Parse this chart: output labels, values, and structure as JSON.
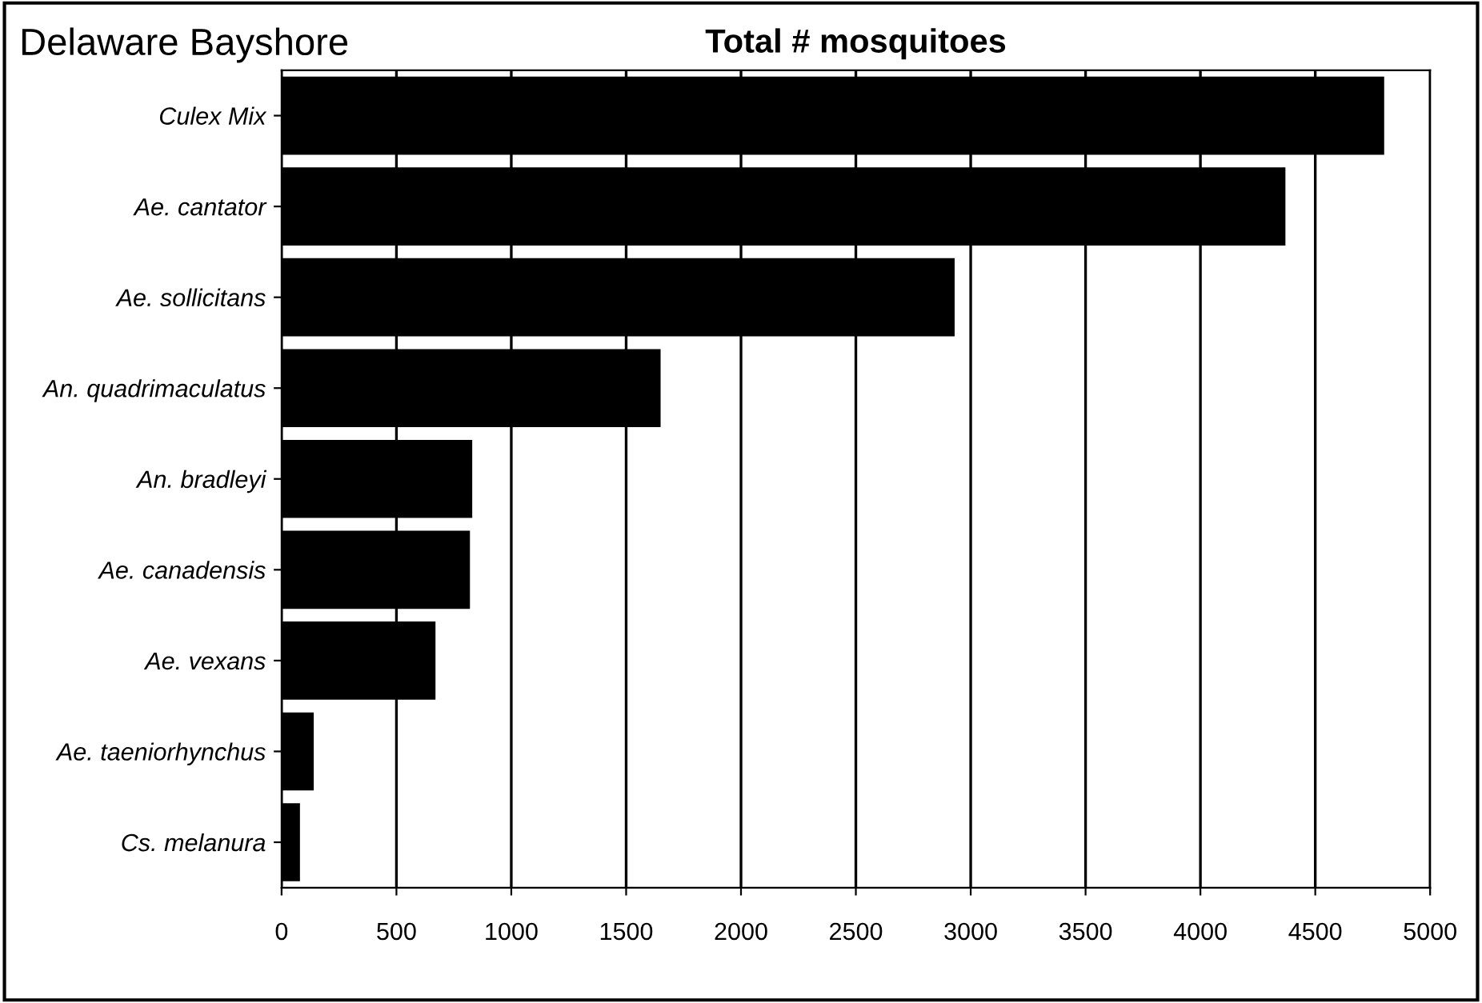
{
  "chart_data": {
    "type": "bar",
    "orientation": "horizontal",
    "title": "Total # mosquitoes",
    "annotations": [
      "Delaware Bayshore"
    ],
    "categories": [
      "Culex Mix",
      "Ae. cantator",
      "Ae. sollicitans",
      "An. quadrimaculatus",
      "An. bradleyi",
      "Ae. canadensis",
      "Ae. vexans",
      "Ae. taeniorhynchus",
      "Cs. melanura"
    ],
    "values": [
      4800,
      4370,
      2930,
      1650,
      830,
      820,
      670,
      140,
      80
    ],
    "color": "#000000",
    "xlim": [
      0,
      5000
    ],
    "xticks": [
      0,
      500,
      1000,
      1500,
      2000,
      2500,
      3000,
      3500,
      4000,
      4500,
      5000
    ],
    "grid": "x",
    "legend": false
  }
}
